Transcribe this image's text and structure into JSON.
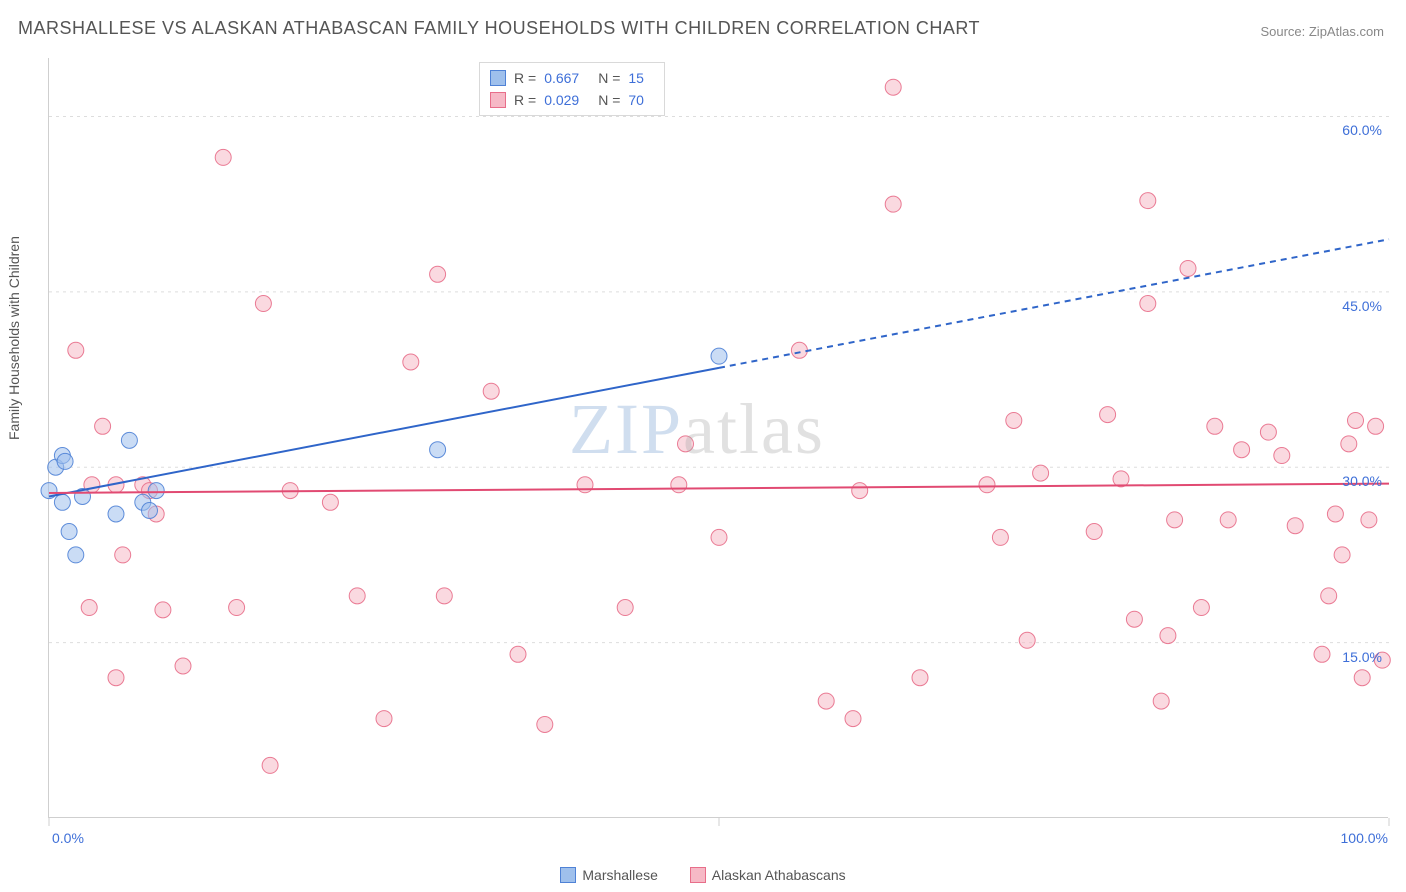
{
  "title": "MARSHALLESE VS ALASKAN ATHABASCAN FAMILY HOUSEHOLDS WITH CHILDREN CORRELATION CHART",
  "source": "Source: ZipAtlas.com",
  "ylabel": "Family Households with Children",
  "watermark": {
    "zip": "ZIP",
    "atlas": "atlas"
  },
  "chart": {
    "type": "scatter",
    "background_color": "#ffffff",
    "grid_color": "#dddddd",
    "grid_dash": "3,4",
    "frame_color": "#cfcfcf",
    "xlim": [
      0,
      100
    ],
    "ylim": [
      0,
      65
    ],
    "x_ticks": [
      0,
      50,
      100
    ],
    "x_tick_labels": [
      "0.0%",
      "",
      "100.0%"
    ],
    "y_ticks": [
      15,
      30,
      45,
      60
    ],
    "y_tick_labels": [
      "15.0%",
      "30.0%",
      "45.0%",
      "60.0%"
    ],
    "marker_radius": 8,
    "marker_opacity": 0.55,
    "marker_stroke_opacity": 0.9,
    "series": [
      {
        "name": "Marshallese",
        "color_fill": "#9FC0EC",
        "color_stroke": "#4F82D6",
        "r": "0.667",
        "n": "15",
        "trend": {
          "x1": 0,
          "y1": 27.5,
          "x2": 50,
          "y2": 38.5,
          "x2_ext": 100,
          "y2_ext": 49.5,
          "stroke": "#2F65C9",
          "width": 2
        },
        "points": [
          [
            0,
            28
          ],
          [
            0.5,
            30
          ],
          [
            1,
            31
          ],
          [
            1,
            27
          ],
          [
            1.5,
            24.5
          ],
          [
            2,
            22.5
          ],
          [
            2.5,
            27.5
          ],
          [
            5,
            26
          ],
          [
            6,
            32.3
          ],
          [
            7,
            27
          ],
          [
            7.5,
            26.3
          ],
          [
            8,
            28
          ],
          [
            1.2,
            30.5
          ],
          [
            29,
            31.5
          ],
          [
            50,
            39.5
          ]
        ]
      },
      {
        "name": "Alaskan Athabascans",
        "color_fill": "#F6B9C6",
        "color_stroke": "#E86E8A",
        "r": "0.029",
        "n": "70",
        "trend": {
          "x1": 0,
          "y1": 27.8,
          "x2": 100,
          "y2": 28.6,
          "x2_ext": 100,
          "y2_ext": 28.6,
          "stroke": "#E14A72",
          "width": 2
        },
        "points": [
          [
            2,
            40
          ],
          [
            3,
            18
          ],
          [
            3.2,
            28.5
          ],
          [
            4,
            33.5
          ],
          [
            5,
            12
          ],
          [
            5,
            28.5
          ],
          [
            5.5,
            22.5
          ],
          [
            7,
            28.5
          ],
          [
            7.5,
            28
          ],
          [
            8,
            26
          ],
          [
            8.5,
            17.8
          ],
          [
            10,
            13
          ],
          [
            13,
            56.5
          ],
          [
            14,
            18
          ],
          [
            16,
            44
          ],
          [
            16.5,
            4.5
          ],
          [
            18,
            28
          ],
          [
            21,
            27
          ],
          [
            23,
            19
          ],
          [
            25,
            8.5
          ],
          [
            27,
            39
          ],
          [
            29,
            46.5
          ],
          [
            29.5,
            19
          ],
          [
            33,
            36.5
          ],
          [
            35,
            14
          ],
          [
            37,
            8
          ],
          [
            40,
            28.5
          ],
          [
            43,
            18
          ],
          [
            47,
            28.5
          ],
          [
            47.5,
            32
          ],
          [
            50,
            24
          ],
          [
            56,
            40
          ],
          [
            58,
            10
          ],
          [
            60,
            8.5
          ],
          [
            60.5,
            28
          ],
          [
            63,
            52.5
          ],
          [
            63,
            62.5
          ],
          [
            65,
            12
          ],
          [
            70,
            28.5
          ],
          [
            71,
            24
          ],
          [
            72,
            34
          ],
          [
            73,
            15.2
          ],
          [
            74,
            29.5
          ],
          [
            78,
            24.5
          ],
          [
            79,
            34.5
          ],
          [
            80,
            29
          ],
          [
            81,
            17
          ],
          [
            82,
            44
          ],
          [
            82,
            52.8
          ],
          [
            83,
            10
          ],
          [
            83.5,
            15.6
          ],
          [
            84,
            25.5
          ],
          [
            85,
            47
          ],
          [
            86,
            18
          ],
          [
            87,
            33.5
          ],
          [
            88,
            25.5
          ],
          [
            89,
            31.5
          ],
          [
            95,
            14
          ],
          [
            95.5,
            19
          ],
          [
            96,
            26
          ],
          [
            96.5,
            22.5
          ],
          [
            97,
            32
          ],
          [
            97.5,
            34
          ],
          [
            98,
            12
          ],
          [
            98.5,
            25.5
          ],
          [
            99,
            33.5
          ],
          [
            99.5,
            13.5
          ],
          [
            93,
            25
          ],
          [
            91,
            33
          ],
          [
            92,
            31
          ]
        ]
      }
    ]
  },
  "legend_top": {
    "rows": [
      {
        "swatch_fill": "#9FC0EC",
        "swatch_stroke": "#4F82D6",
        "r_label": "R =",
        "r_val": "0.667",
        "n_label": "N =",
        "n_val": "15"
      },
      {
        "swatch_fill": "#F6B9C6",
        "swatch_stroke": "#E86E8A",
        "r_label": "R =",
        "r_val": "0.029",
        "n_label": "N =",
        "n_val": "70"
      }
    ]
  },
  "legend_bottom": {
    "items": [
      {
        "swatch_fill": "#9FC0EC",
        "swatch_stroke": "#4F82D6",
        "label": "Marshallese"
      },
      {
        "swatch_fill": "#F6B9C6",
        "swatch_stroke": "#E86E8A",
        "label": "Alaskan Athabascans"
      }
    ]
  }
}
